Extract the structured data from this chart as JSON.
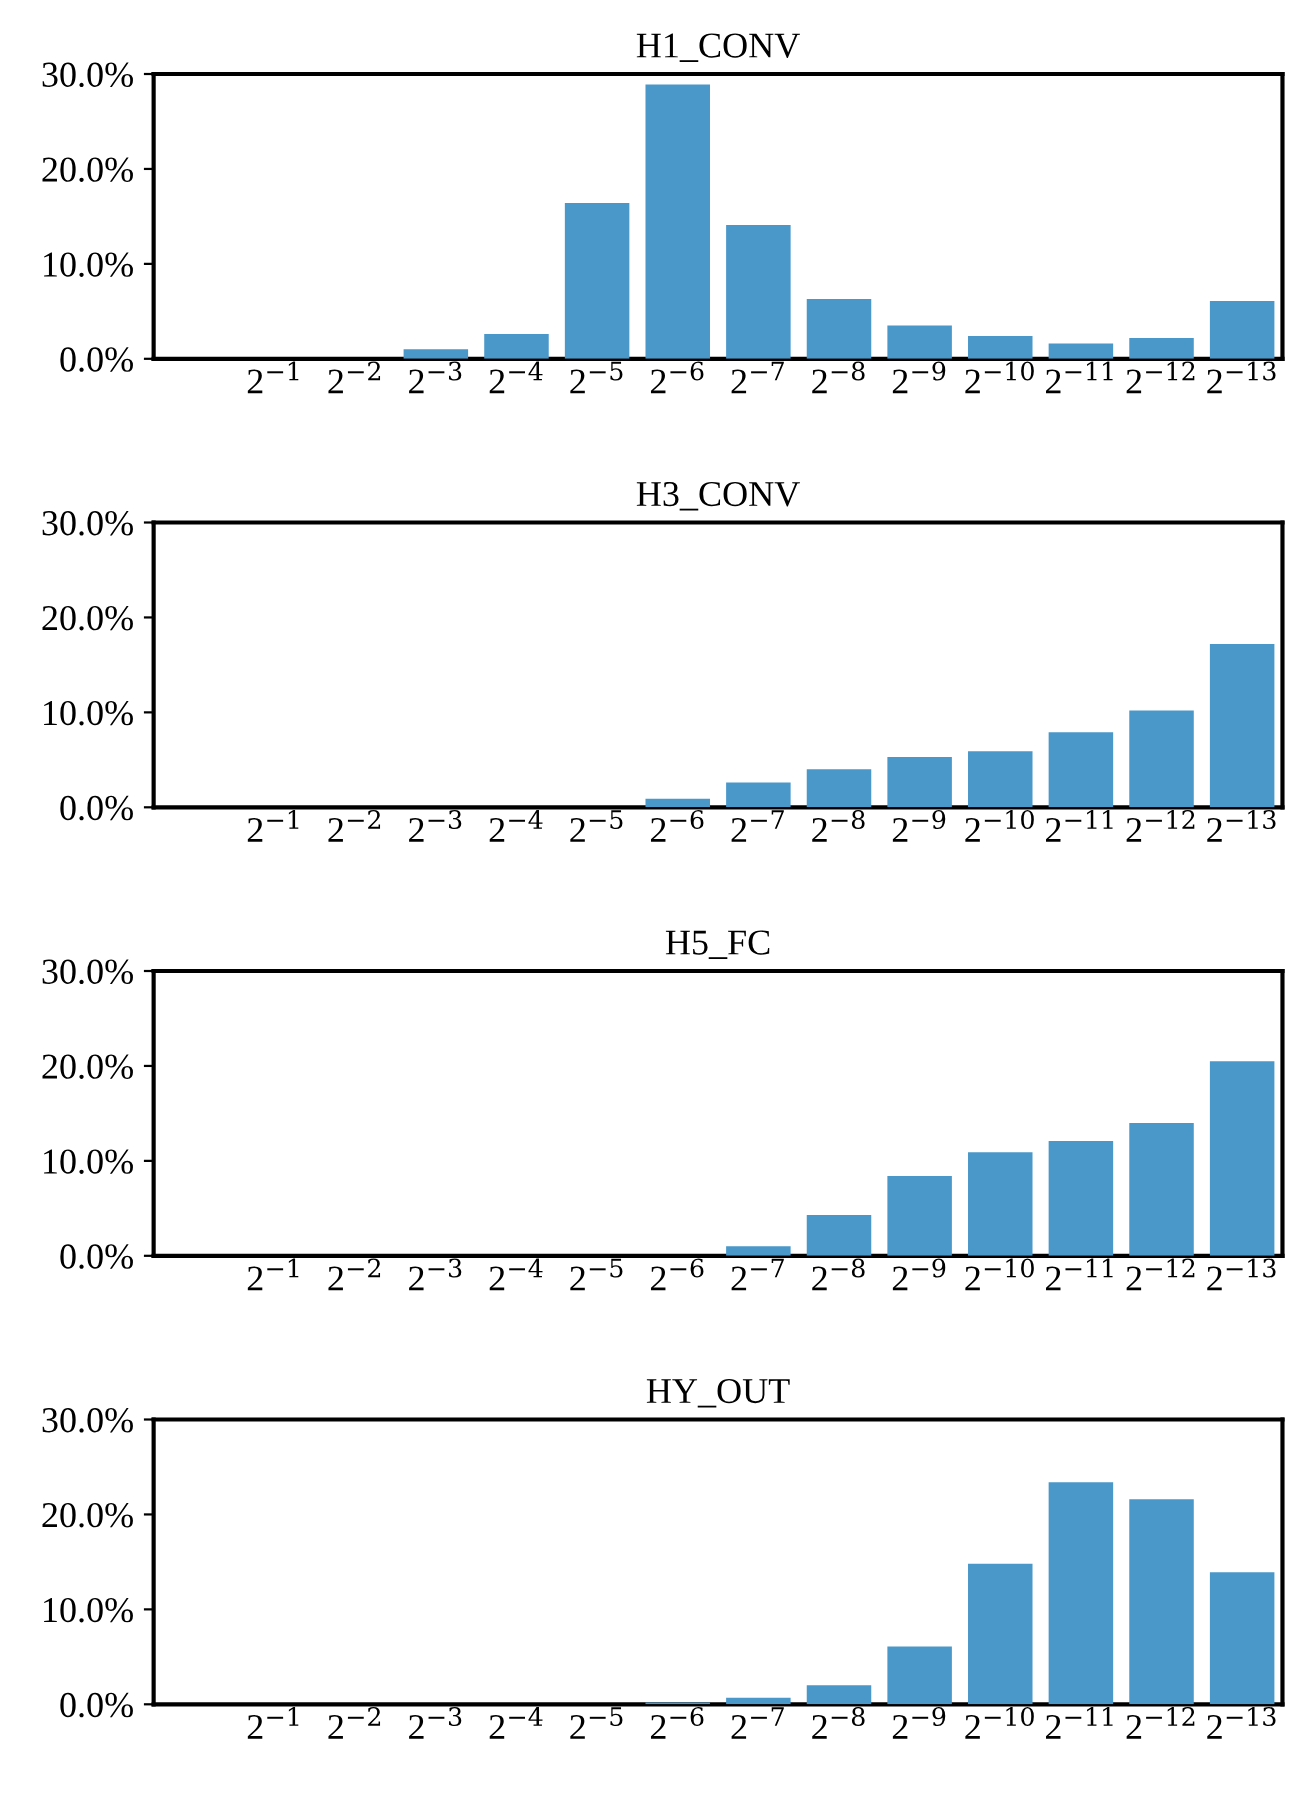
{
  "chart_data": [
    {
      "type": "bar",
      "title": "H1_CONV",
      "categories": [
        "2$^{−1}$",
        "2$^{−2}$",
        "2$^{−3}$",
        "2$^{−4}$",
        "2$^{−5}$",
        "2$^{−6}$",
        "2$^{−7}$",
        "2$^{−8}$",
        "2$^{−9}$",
        "2$^{−10}$",
        "2$^{−11}$",
        "2$^{−12}$",
        "2$^{−13}$"
      ],
      "values": [
        0,
        0,
        1.0,
        2.6,
        16.4,
        28.9,
        14.1,
        6.3,
        3.5,
        2.4,
        1.6,
        2.2,
        6.1
      ],
      "color": "#4a98c9",
      "ylim": [
        0,
        30
      ],
      "yticks": [
        {
          "value": 0,
          "label": "0.0%"
        },
        {
          "value": 10,
          "label": "10.0%"
        },
        {
          "value": 20,
          "label": "20.0%"
        },
        {
          "value": 30,
          "label": "30.0%"
        }
      ],
      "grid": false,
      "legend": false
    },
    {
      "type": "bar",
      "title": "H3_CONV",
      "categories": [
        "2$^{−1}$",
        "2$^{−2}$",
        "2$^{−3}$",
        "2$^{−4}$",
        "2$^{−5}$",
        "2$^{−6}$",
        "2$^{−7}$",
        "2$^{−8}$",
        "2$^{−9}$",
        "2$^{−10}$",
        "2$^{−11}$",
        "2$^{−12}$",
        "2$^{−13}$"
      ],
      "values": [
        0,
        0,
        0,
        0,
        0,
        0.9,
        2.6,
        4.0,
        5.3,
        5.9,
        7.9,
        10.2,
        17.2
      ],
      "color": "#4a98c9",
      "ylim": [
        0,
        30
      ],
      "yticks": [
        {
          "value": 0,
          "label": "0.0%"
        },
        {
          "value": 10,
          "label": "10.0%"
        },
        {
          "value": 20,
          "label": "20.0%"
        },
        {
          "value": 30,
          "label": "30.0%"
        }
      ],
      "grid": false,
      "legend": false
    },
    {
      "type": "bar",
      "title": "H5_FC",
      "categories": [
        "2$^{−1}$",
        "2$^{−2}$",
        "2$^{−3}$",
        "2$^{−4}$",
        "2$^{−5}$",
        "2$^{−6}$",
        "2$^{−7}$",
        "2$^{−8}$",
        "2$^{−9}$",
        "2$^{−10}$",
        "2$^{−11}$",
        "2$^{−12}$",
        "2$^{−13}$"
      ],
      "values": [
        0,
        0,
        0,
        0,
        0,
        0,
        1.0,
        4.3,
        8.4,
        10.9,
        12.1,
        14.0,
        20.5
      ],
      "color": "#4a98c9",
      "ylim": [
        0,
        30
      ],
      "yticks": [
        {
          "value": 0,
          "label": "0.0%"
        },
        {
          "value": 10,
          "label": "10.0%"
        },
        {
          "value": 20,
          "label": "20.0%"
        },
        {
          "value": 30,
          "label": "30.0%"
        }
      ],
      "grid": false,
      "legend": false
    },
    {
      "type": "bar",
      "title": "HY_OUT",
      "categories": [
        "2$^{−1}$",
        "2$^{−2}$",
        "2$^{−3}$",
        "2$^{−4}$",
        "2$^{−5}$",
        "2$^{−6}$",
        "2$^{−7}$",
        "2$^{−8}$",
        "2$^{−9}$",
        "2$^{−10}$",
        "2$^{−11}$",
        "2$^{−12}$",
        "2$^{−13}$"
      ],
      "values": [
        0,
        0,
        0,
        0,
        0,
        0.2,
        0.7,
        2.0,
        6.1,
        14.8,
        23.4,
        21.6,
        13.9
      ],
      "color": "#4a98c9",
      "ylim": [
        0,
        30
      ],
      "yticks": [
        {
          "value": 0,
          "label": "0.0%"
        },
        {
          "value": 10,
          "label": "10.0%"
        },
        {
          "value": 20,
          "label": "20.0%"
        },
        {
          "value": 30,
          "label": "30.0%"
        }
      ],
      "grid": false,
      "legend": false
    }
  ]
}
